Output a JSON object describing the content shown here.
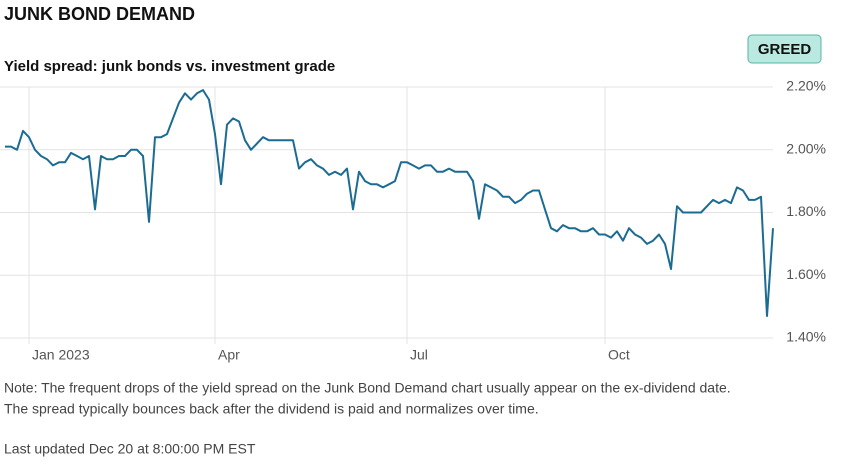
{
  "chart_data": {
    "type": "line",
    "title": "JUNK BOND DEMAND",
    "subtitle": "Yield spread: junk bonds vs. investment grade",
    "badge": "GREED",
    "note": [
      "Note: The frequent drops of the yield spread on the Junk Bond Demand chart usually appear on the ex-dividend date.",
      "The spread typically bounces back after the dividend is paid and normalizes over time."
    ],
    "updated": "Last updated Dec 20 at 8:00:00 PM EST",
    "color": "#1c6b93",
    "grid": true,
    "ylim": [
      1.4,
      2.2
    ],
    "yticks": [
      {
        "value": 1.4,
        "label": "1.40%"
      },
      {
        "value": 1.6,
        "label": "1.60%"
      },
      {
        "value": 1.8,
        "label": "1.80%"
      },
      {
        "value": 2.0,
        "label": "2.00%"
      },
      {
        "value": 2.2,
        "label": "2.20%"
      }
    ],
    "categories": [
      null,
      null,
      null,
      null,
      "Jan 2023",
      null,
      null,
      null,
      null,
      null,
      null,
      null,
      null,
      null,
      null,
      null,
      null,
      null,
      null,
      null,
      null,
      null,
      null,
      null,
      null,
      null,
      null,
      null,
      null,
      null,
      null,
      null,
      null,
      null,
      null,
      "Apr",
      null,
      null,
      null,
      null,
      null,
      null,
      null,
      null,
      null,
      null,
      null,
      null,
      null,
      null,
      null,
      null,
      null,
      null,
      null,
      null,
      null,
      null,
      null,
      null,
      null,
      null,
      null,
      null,
      null,
      null,
      null,
      "Jul",
      null,
      null,
      null,
      null,
      null,
      null,
      null,
      null,
      null,
      null,
      null,
      null,
      null,
      null,
      null,
      null,
      null,
      null,
      null,
      null,
      null,
      null,
      null,
      null,
      null,
      null,
      null,
      null,
      null,
      null,
      null,
      null,
      "Oct",
      null,
      null,
      null,
      null,
      null,
      null,
      null,
      null,
      null,
      null,
      null,
      null,
      null,
      null,
      null,
      null,
      null,
      null,
      null,
      null,
      null,
      null,
      null,
      null,
      null,
      null,
      null,
      null
    ],
    "values": [
      2.01,
      2.01,
      2.0,
      2.06,
      2.04,
      2.0,
      1.98,
      1.97,
      1.95,
      1.96,
      1.96,
      1.99,
      1.98,
      1.97,
      1.98,
      1.81,
      1.98,
      1.97,
      1.97,
      1.98,
      1.98,
      2.0,
      2.0,
      1.98,
      1.77,
      2.04,
      2.04,
      2.05,
      2.1,
      2.15,
      2.18,
      2.16,
      2.18,
      2.19,
      2.16,
      2.05,
      1.89,
      2.08,
      2.1,
      2.09,
      2.03,
      2.0,
      2.02,
      2.04,
      2.03,
      2.03,
      2.03,
      2.03,
      2.03,
      1.94,
      1.96,
      1.97,
      1.95,
      1.94,
      1.92,
      1.93,
      1.92,
      1.94,
      1.81,
      1.93,
      1.9,
      1.89,
      1.89,
      1.88,
      1.89,
      1.9,
      1.96,
      1.96,
      1.95,
      1.94,
      1.95,
      1.95,
      1.93,
      1.93,
      1.94,
      1.93,
      1.93,
      1.93,
      1.9,
      1.78,
      1.89,
      1.88,
      1.87,
      1.85,
      1.85,
      1.83,
      1.84,
      1.86,
      1.87,
      1.87,
      1.81,
      1.75,
      1.74,
      1.76,
      1.75,
      1.75,
      1.74,
      1.74,
      1.75,
      1.73,
      1.73,
      1.72,
      1.74,
      1.71,
      1.75,
      1.73,
      1.72,
      1.7,
      1.71,
      1.73,
      1.7,
      1.62,
      1.82,
      1.8,
      1.8,
      1.8,
      1.8,
      1.82,
      1.84,
      1.83,
      1.84,
      1.83,
      1.88,
      1.87,
      1.84,
      1.84,
      1.85,
      1.47,
      1.75
    ]
  }
}
